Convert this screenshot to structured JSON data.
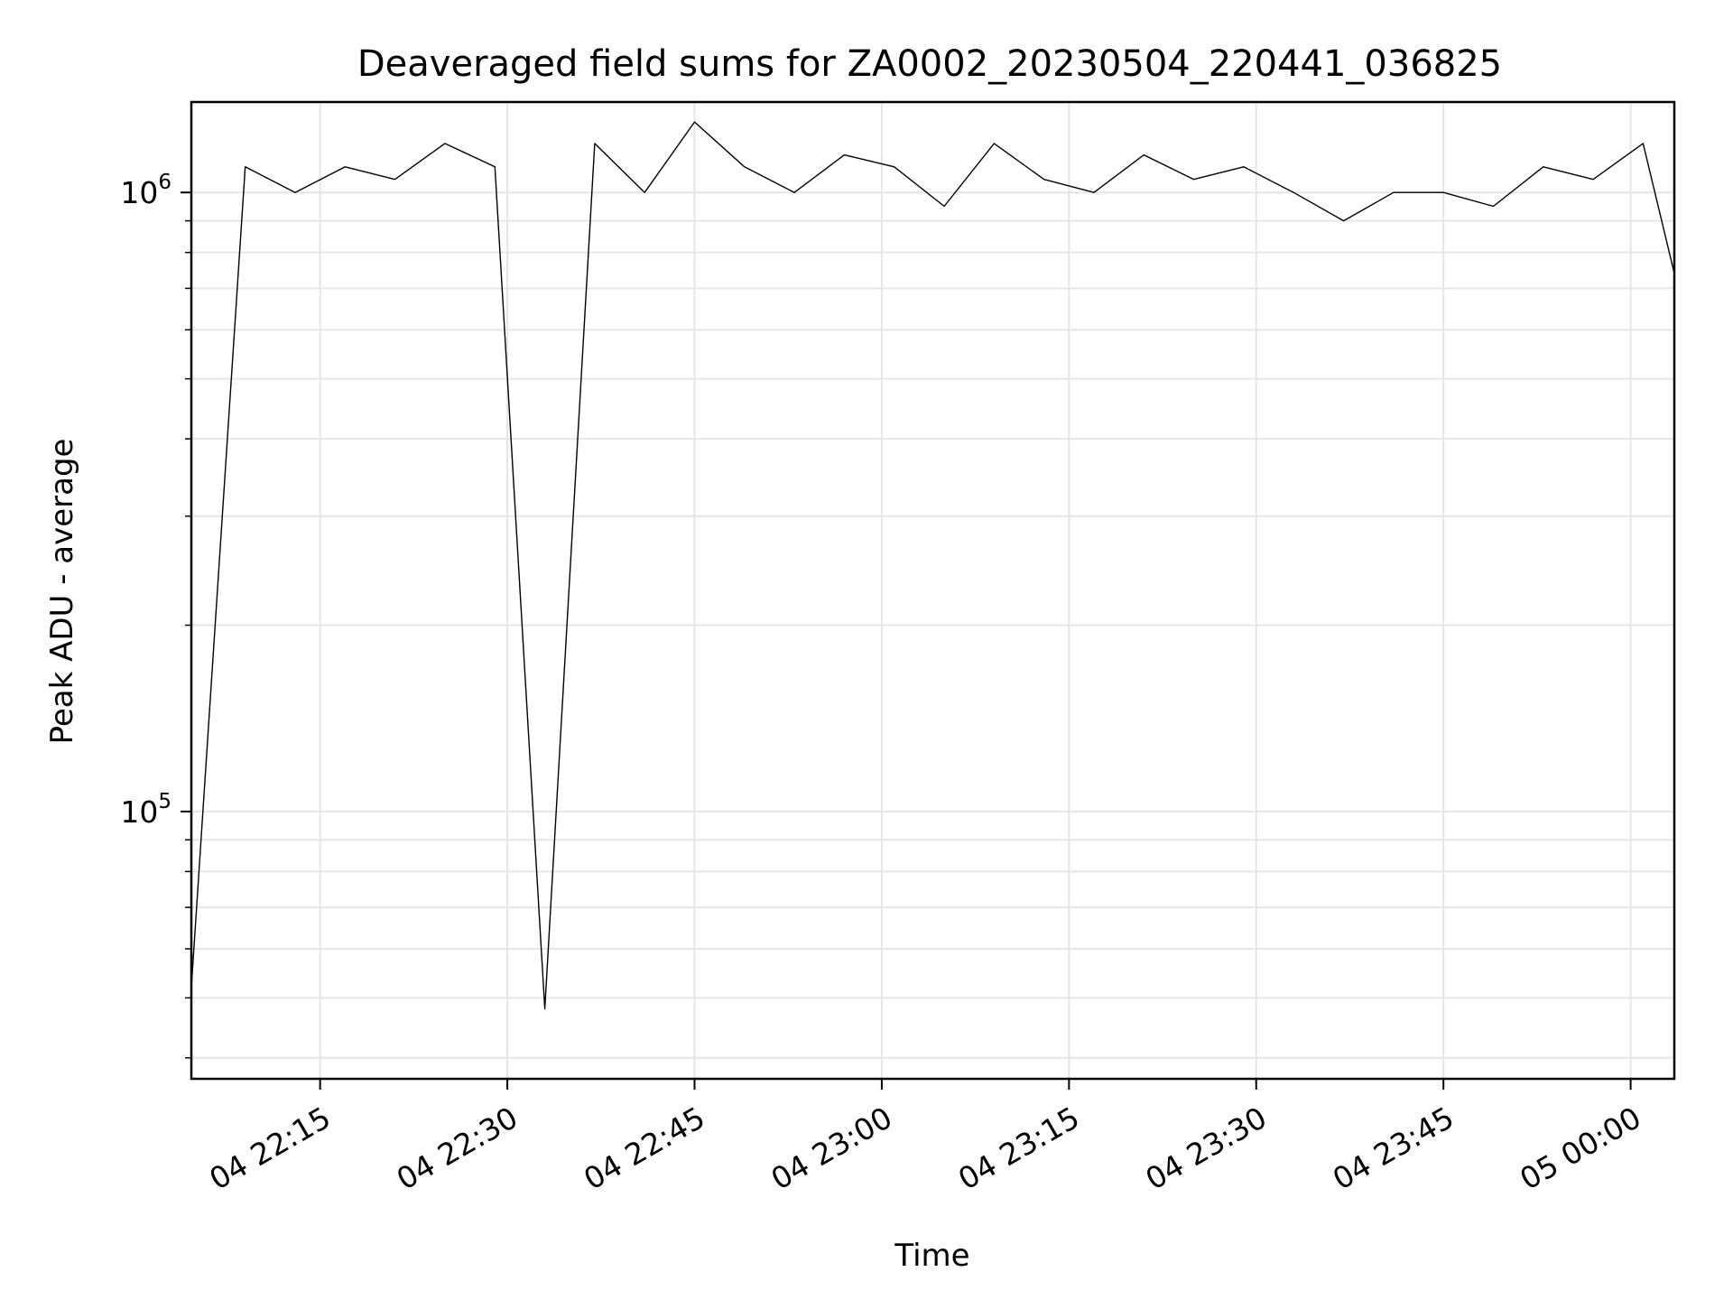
{
  "chart_data": {
    "type": "line",
    "title": "Deaveraged field sums for ZA0002_20230504_220441_036825",
    "xlabel": "Time",
    "ylabel": "Peak ADU - average",
    "y_scale": "log",
    "ylim": [
      37000,
      1400000
    ],
    "xlim": [
      "2023-05-04 22:04:41",
      "2023-05-05 00:03:30"
    ],
    "grid": true,
    "line_color": "#000000",
    "grid_color": "#e6e6e6",
    "legend": "none",
    "x_ticks": [
      {
        "label": "04 22:15",
        "value": "2023-05-04 22:15:00"
      },
      {
        "label": "04 22:30",
        "value": "2023-05-04 22:30:00"
      },
      {
        "label": "04 22:45",
        "value": "2023-05-04 22:45:00"
      },
      {
        "label": "04 23:00",
        "value": "2023-05-04 23:00:00"
      },
      {
        "label": "04 23:15",
        "value": "2023-05-04 23:15:00"
      },
      {
        "label": "04 23:30",
        "value": "2023-05-04 23:30:00"
      },
      {
        "label": "04 23:45",
        "value": "2023-05-04 23:45:00"
      },
      {
        "label": "05 00:00",
        "value": "2023-05-05 00:00:00"
      }
    ],
    "y_ticks": [
      {
        "base": "10",
        "exp": "5",
        "value": 100000
      },
      {
        "base": "10",
        "exp": "6",
        "value": 1000000
      }
    ],
    "series": [
      {
        "x": [
          "2023-05-04 22:04:41",
          "2023-05-04 22:09:00",
          "2023-05-04 22:13:00",
          "2023-05-04 22:17:00",
          "2023-05-04 22:21:00",
          "2023-05-04 22:25:00",
          "2023-05-04 22:29:00",
          "2023-05-04 22:33:00",
          "2023-05-04 22:37:00",
          "2023-05-04 22:41:00",
          "2023-05-04 22:45:00",
          "2023-05-04 22:49:00",
          "2023-05-04 22:53:00",
          "2023-05-04 22:57:00",
          "2023-05-04 23:01:00",
          "2023-05-04 23:05:00",
          "2023-05-04 23:09:00",
          "2023-05-04 23:13:00",
          "2023-05-04 23:17:00",
          "2023-05-04 23:21:00",
          "2023-05-04 23:25:00",
          "2023-05-04 23:29:00",
          "2023-05-04 23:33:00",
          "2023-05-04 23:37:00",
          "2023-05-04 23:41:00",
          "2023-05-04 23:45:00",
          "2023-05-04 23:49:00",
          "2023-05-04 23:53:00",
          "2023-05-04 23:57:00",
          "2023-05-05 00:01:00",
          "2023-05-05 00:03:30"
        ],
        "y": [
          52000,
          1100000,
          1000000,
          1100000,
          1050000,
          1200000,
          1100000,
          48000,
          1200000,
          1000000,
          1300000,
          1100000,
          1000000,
          1150000,
          1100000,
          950000,
          1200000,
          1050000,
          1000000,
          1150000,
          1050000,
          1100000,
          1000000,
          900000,
          1000000,
          1000000,
          950000,
          1100000,
          1050000,
          1200000,
          740000
        ]
      }
    ]
  }
}
